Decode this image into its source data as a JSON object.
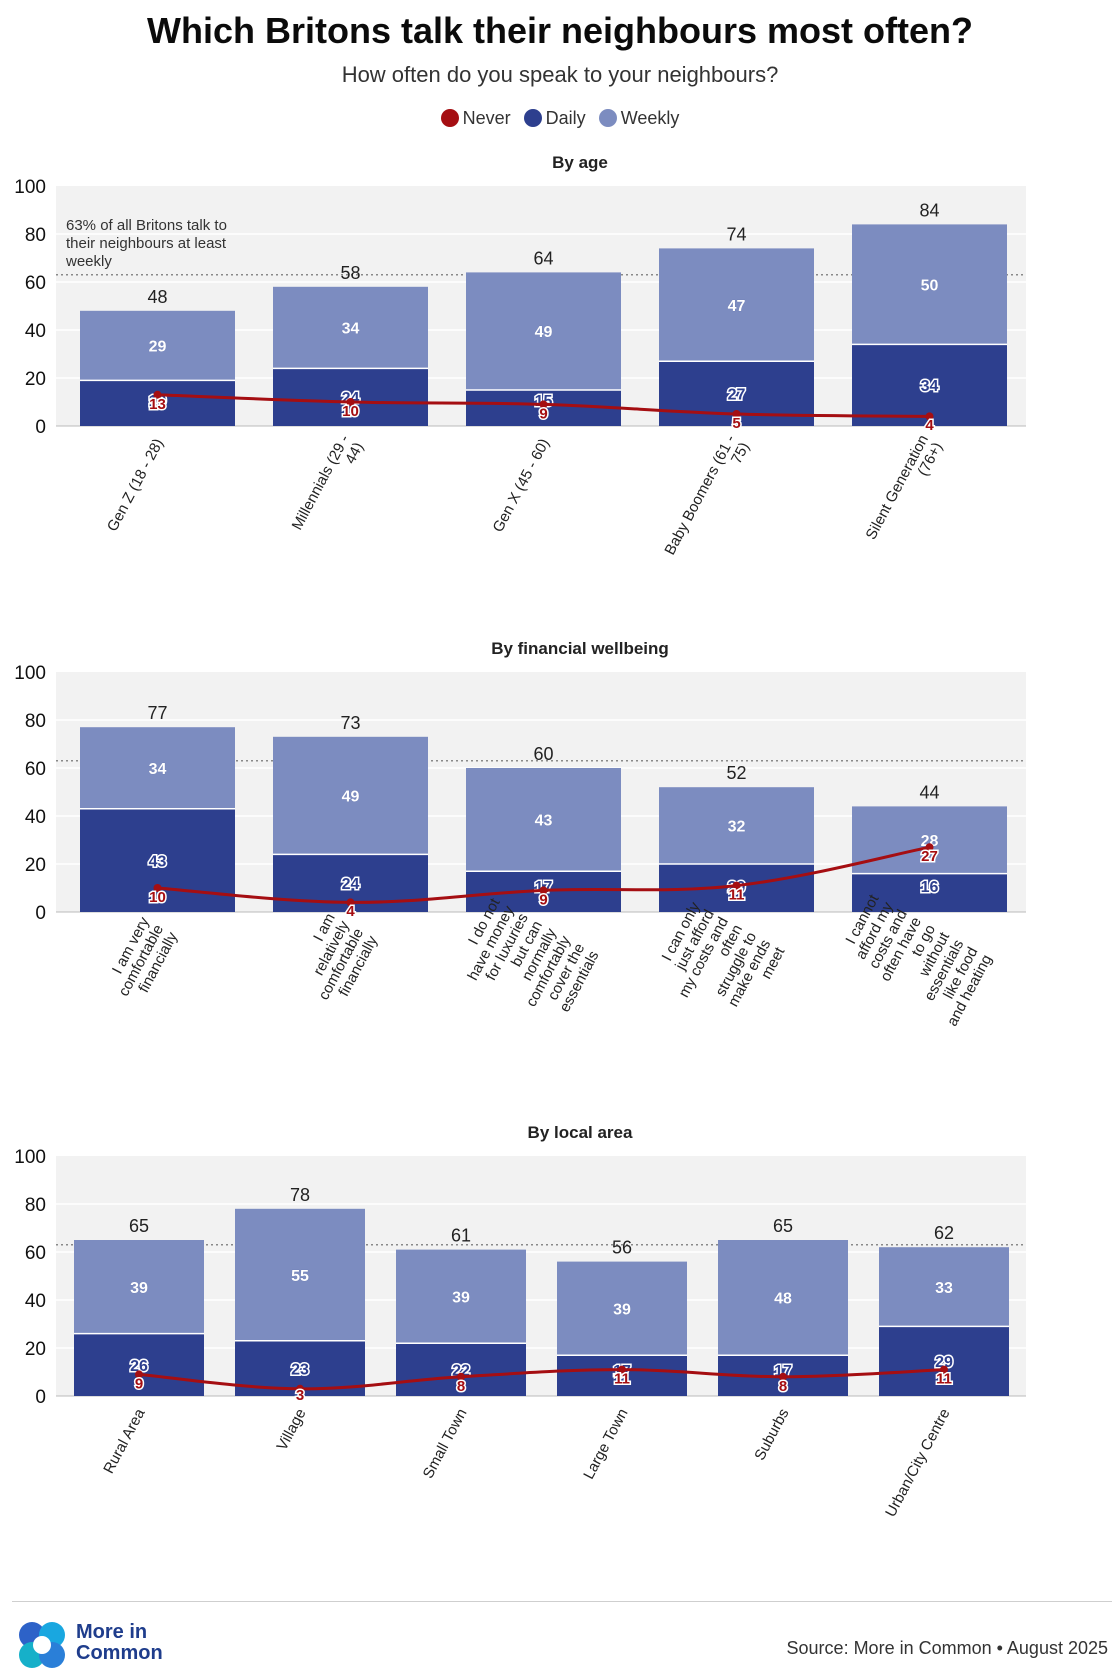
{
  "title": "Which Britons talk their neighbours most often?",
  "subtitle": "How often do you speak to your neighbours?",
  "legend": [
    {
      "label": "Never",
      "color": "#a50e12"
    },
    {
      "label": "Daily",
      "color": "#2d3f8e"
    },
    {
      "label": "Weekly",
      "color": "#7c8cc0"
    }
  ],
  "annotation": "63% of all Britons talk to their neighbours at least weekly",
  "reference_line_value": 63,
  "chart_data": [
    {
      "type": "bar",
      "title": "By age",
      "categories": [
        "Gen Z (18 - 28)",
        "Millennials (29 - 44)",
        "Gen X (45 - 60)",
        "Baby Boomers (61 - 75)",
        "Silent Generation (76+)"
      ],
      "series": [
        {
          "name": "Daily",
          "values": [
            19,
            24,
            15,
            27,
            34
          ]
        },
        {
          "name": "Weekly",
          "values": [
            29,
            34,
            49,
            47,
            50
          ]
        },
        {
          "name": "Never",
          "values": [
            13,
            10,
            9,
            5,
            4
          ]
        }
      ],
      "totals": [
        48,
        58,
        64,
        74,
        84
      ],
      "ylim": [
        0,
        100
      ],
      "yticks": [
        0,
        20,
        40,
        60,
        80,
        100
      ]
    },
    {
      "type": "bar",
      "title": "By financial wellbeing",
      "categories": [
        "I am very comfortable financially",
        "I am relatively comfortable financially",
        "I do not have money for luxuries but can normally comfortably cover the essentials",
        "I can only just afford my costs and often struggle to make ends meet",
        "I cannot afford my costs and often have to go without essentials like food and heating"
      ],
      "series": [
        {
          "name": "Daily",
          "values": [
            43,
            24,
            17,
            20,
            16
          ]
        },
        {
          "name": "Weekly",
          "values": [
            34,
            49,
            43,
            32,
            28
          ]
        },
        {
          "name": "Never",
          "values": [
            10,
            4,
            9,
            11,
            27
          ]
        }
      ],
      "totals": [
        77,
        73,
        60,
        52,
        44
      ],
      "ylim": [
        0,
        100
      ],
      "yticks": [
        0,
        20,
        40,
        60,
        80,
        100
      ]
    },
    {
      "type": "bar",
      "title": "By local area",
      "categories": [
        "Rural Area",
        "Village",
        "Small Town",
        "Large Town",
        "Suburbs",
        "Urban/City Centre"
      ],
      "series": [
        {
          "name": "Daily",
          "values": [
            26,
            23,
            22,
            17,
            17,
            29
          ]
        },
        {
          "name": "Weekly",
          "values": [
            39,
            55,
            39,
            39,
            48,
            33
          ]
        },
        {
          "name": "Never",
          "values": [
            9,
            3,
            8,
            11,
            8,
            11
          ]
        }
      ],
      "totals": [
        65,
        78,
        61,
        56,
        65,
        62
      ],
      "ylim": [
        0,
        100
      ],
      "yticks": [
        0,
        20,
        40,
        60,
        80,
        100
      ]
    }
  ],
  "footer": {
    "logo_text": "More in Common",
    "source": "Source: More in Common • August 2025"
  }
}
